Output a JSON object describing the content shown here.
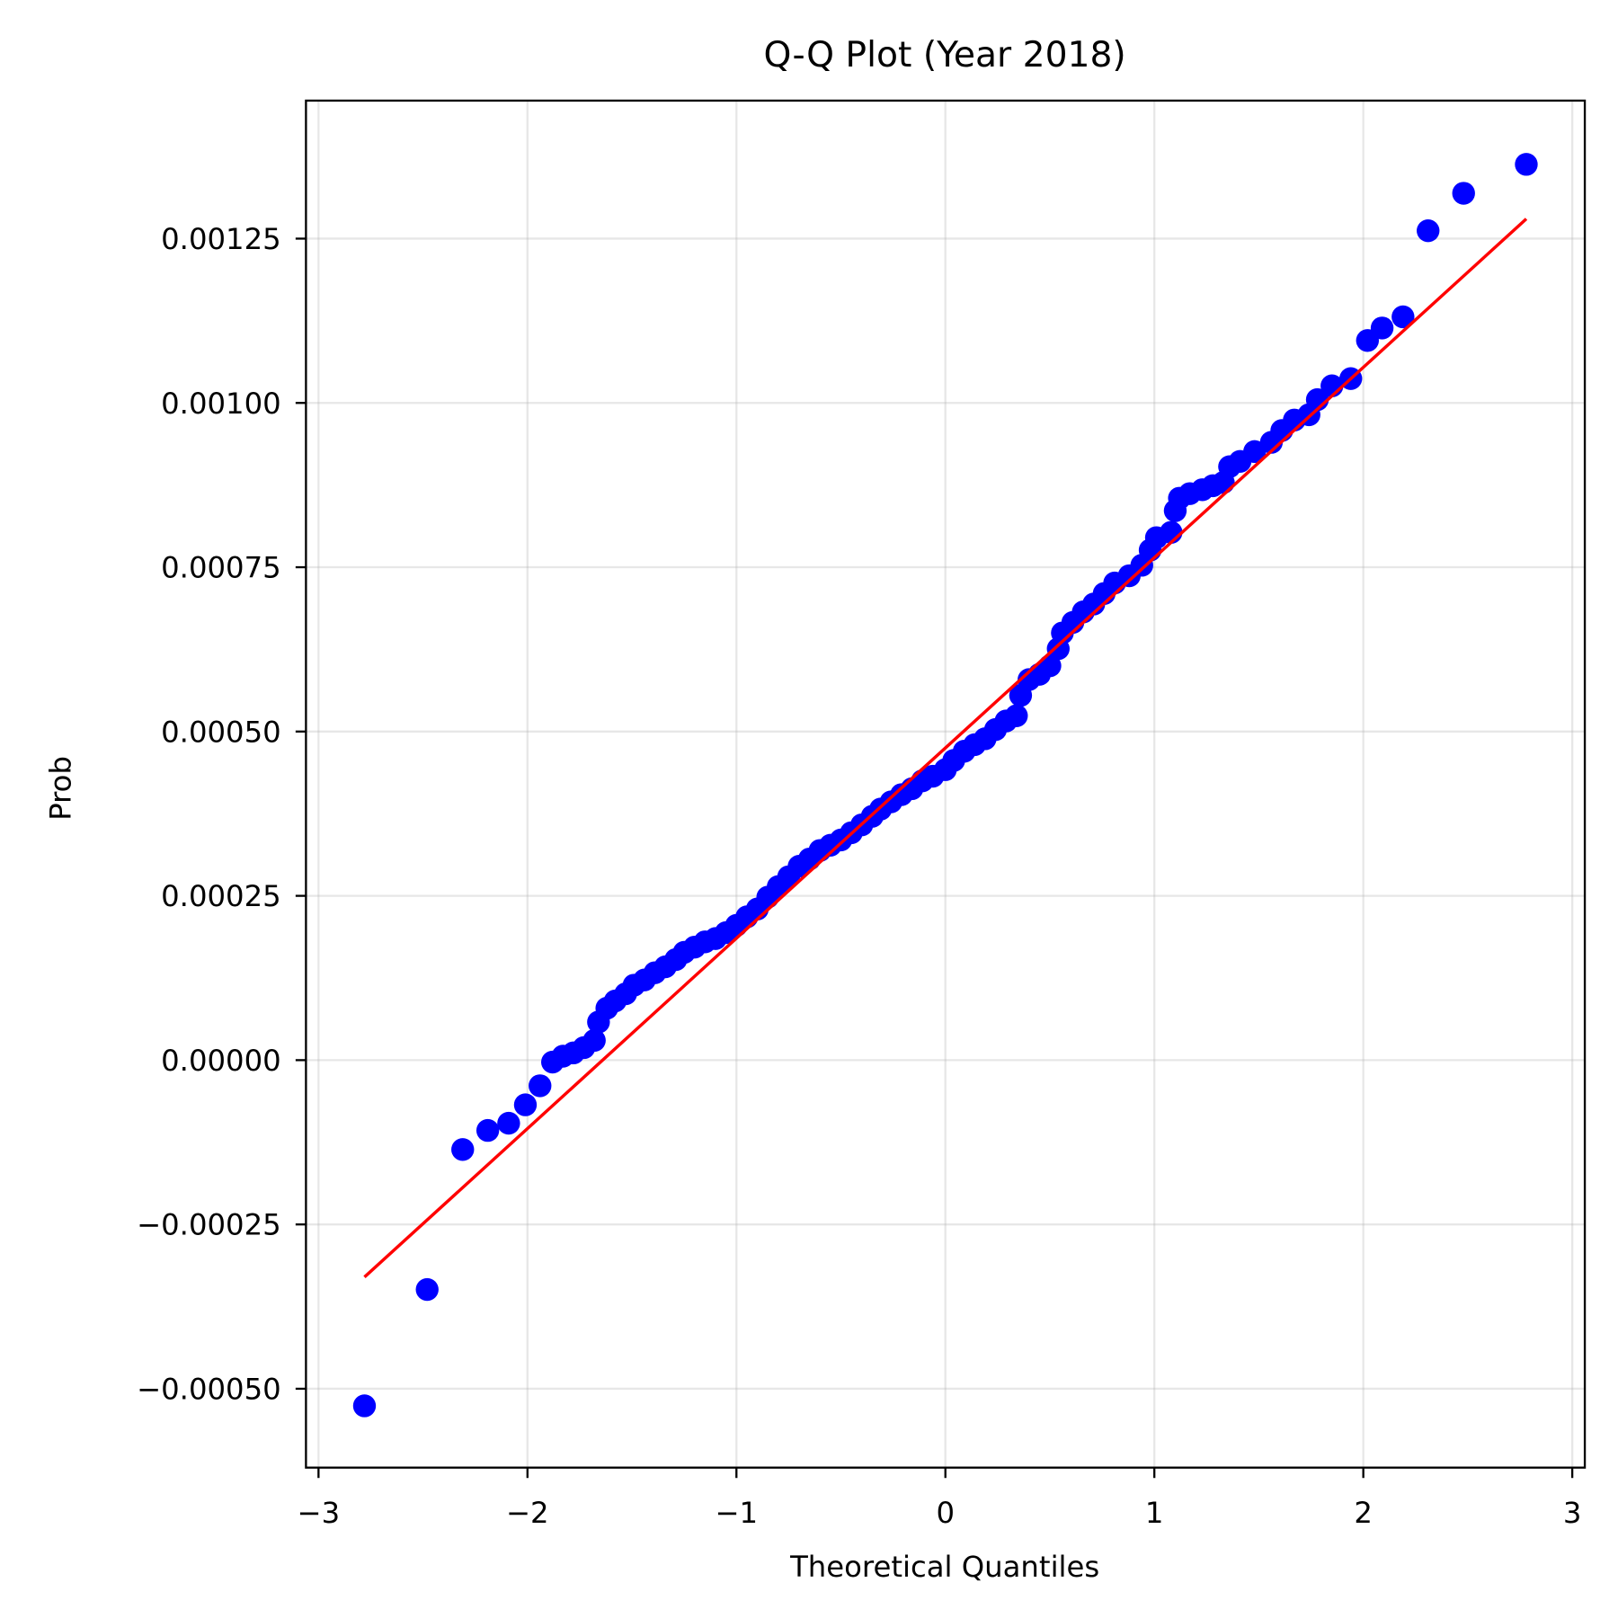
{
  "chart_data": {
    "type": "scatter",
    "title": "Q-Q Plot (Year 2018)",
    "x_label": "Theoretical Quantiles",
    "y_label": "Prob",
    "xlim": [
      -3.06,
      3.06
    ],
    "ylim": [
      -0.00062,
      0.00146
    ],
    "xticks": [
      {
        "value": -3,
        "label": "−3"
      },
      {
        "value": -2,
        "label": "−2"
      },
      {
        "value": -1,
        "label": "−1"
      },
      0,
      1,
      2,
      3
    ],
    "yticks": [
      {
        "value": -0.0005,
        "label": "−0.00050"
      },
      {
        "value": -0.00025,
        "label": "−0.00025"
      },
      {
        "value": 0,
        "label": "0.00000"
      },
      0.00025,
      {
        "value": 0.0005,
        "label": "0.00050"
      },
      0.00075,
      {
        "value": 0.001,
        "label": "0.00100"
      },
      0.00125
    ],
    "grid": true,
    "series": [
      {
        "type": "scatter",
        "color": "#0000ff",
        "x": [
          -2.78,
          -2.48,
          -2.31,
          -2.19,
          -2.09,
          -2.01,
          -1.94,
          -1.88,
          -1.83,
          -1.78,
          -1.73,
          -1.68,
          -1.66,
          -1.62,
          -1.58,
          -1.53,
          -1.49,
          -1.44,
          -1.39,
          -1.34,
          -1.29,
          -1.25,
          -1.2,
          -1.15,
          -1.1,
          -1.05,
          -1.0,
          -0.95,
          -0.9,
          -0.85,
          -0.8,
          -0.75,
          -0.7,
          -0.65,
          -0.6,
          -0.55,
          -0.5,
          -0.45,
          -0.4,
          -0.35,
          -0.31,
          -0.26,
          -0.21,
          -0.16,
          -0.11,
          -0.06,
          0.0,
          0.04,
          0.09,
          0.14,
          0.19,
          0.24,
          0.29,
          0.34,
          0.36,
          0.4,
          0.45,
          0.5,
          0.54,
          0.56,
          0.61,
          0.66,
          0.71,
          0.76,
          0.81,
          0.88,
          0.94,
          0.98,
          1.01,
          1.08,
          1.1,
          1.12,
          1.17,
          1.23,
          1.28,
          1.33,
          1.36,
          1.41,
          1.48,
          1.56,
          1.61,
          1.67,
          1.74,
          1.78,
          1.85,
          1.94,
          2.02,
          2.09,
          2.19,
          2.31,
          2.48,
          2.78
        ],
        "values": [
          -0.000526,
          -0.000349,
          -0.000136,
          -0.000107,
          -9.6e-05,
          -6.8e-05,
          -3.9e-05,
          -3e-06,
          6e-06,
          1.1e-05,
          1.9e-05,
          3e-05,
          5.8e-05,
          7.9e-05,
          9e-05,
          0.000101,
          0.000114,
          0.000122,
          0.000133,
          0.000142,
          0.000153,
          0.000164,
          0.000172,
          0.00018,
          0.000185,
          0.000194,
          0.000205,
          0.000218,
          0.00023,
          0.000248,
          0.000264,
          0.000279,
          0.000295,
          0.000306,
          0.000319,
          0.000327,
          0.000335,
          0.000346,
          0.000358,
          0.000371,
          0.000382,
          0.000393,
          0.000404,
          0.000413,
          0.000425,
          0.000432,
          0.000442,
          0.000456,
          0.00047,
          0.00048,
          0.000489,
          0.000503,
          0.000516,
          0.000524,
          0.000555,
          0.000579,
          0.000587,
          0.0006,
          0.000626,
          0.00065,
          0.000666,
          0.000682,
          0.000694,
          0.00071,
          0.000726,
          0.000737,
          0.000753,
          0.000776,
          0.000795,
          0.000803,
          0.000836,
          0.000855,
          0.000862,
          0.000868,
          0.000874,
          0.000879,
          0.000903,
          0.000911,
          0.000926,
          0.00094,
          0.000958,
          0.000974,
          0.000982,
          0.001005,
          0.001026,
          0.001037,
          0.001095,
          0.001114,
          0.001131,
          0.001262,
          0.001319,
          0.001363
        ]
      },
      {
        "type": "line",
        "color": "#ff0000",
        "x": [
          -2.78,
          2.78
        ],
        "values": [
          -0.00033,
          0.00128
        ]
      }
    ]
  }
}
